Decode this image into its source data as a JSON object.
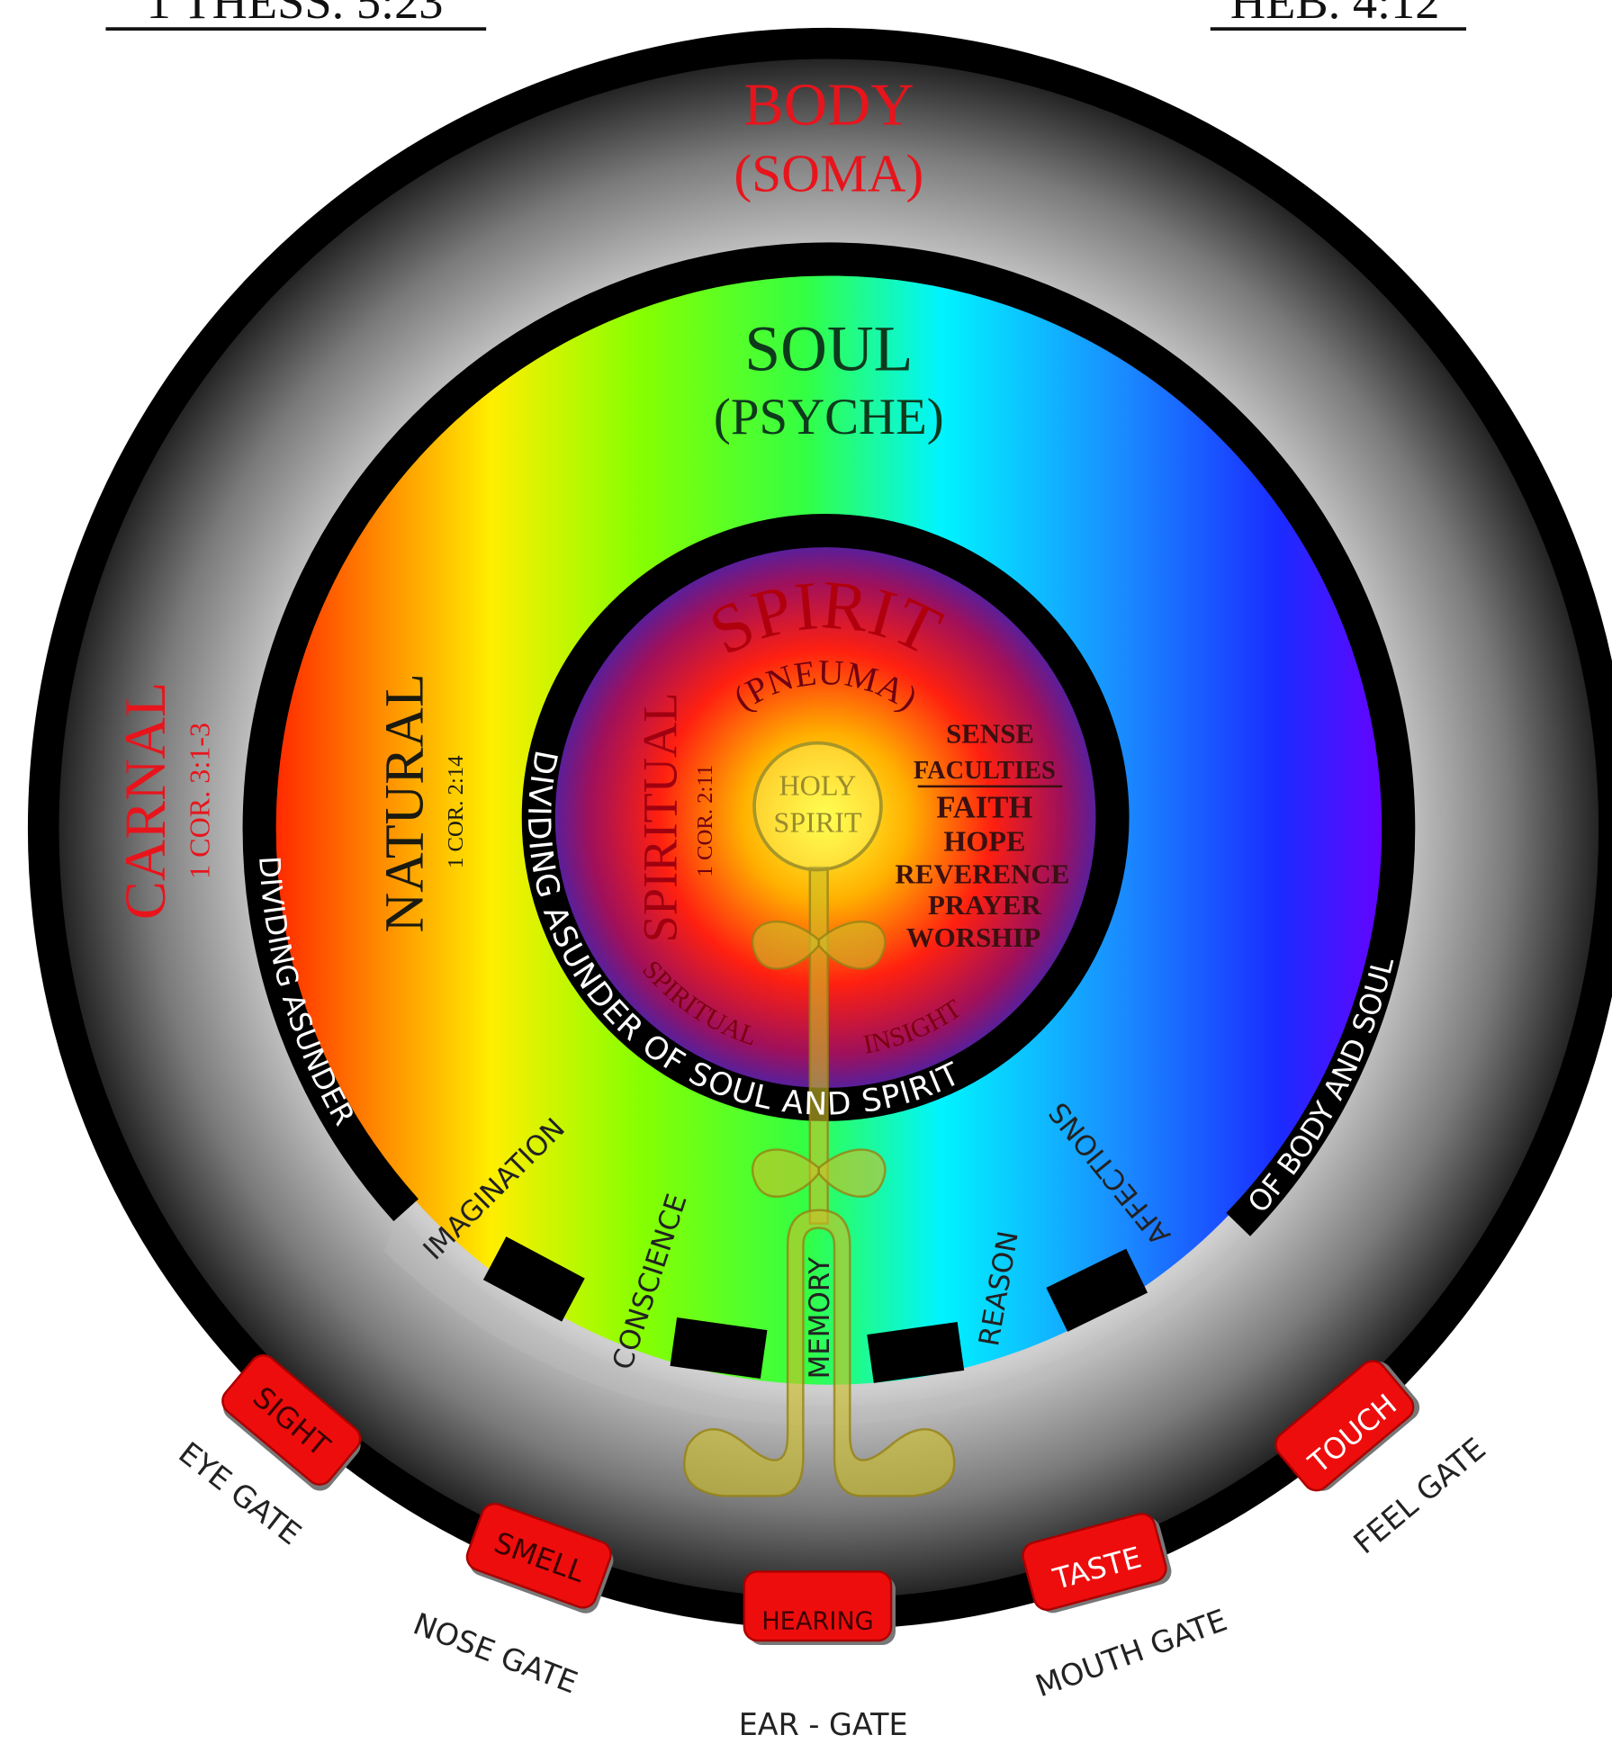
{
  "references": {
    "left": "1 THESS. 5:23",
    "right": "HEB. 4:12"
  },
  "body": {
    "title": "BODY",
    "subtitle": "(SOMA)",
    "label": "CARNAL",
    "reference": "1 COR. 3:1-3"
  },
  "soul": {
    "title": "SOUL",
    "subtitle": "(PSYCHE)",
    "label": "NATURAL",
    "reference": "1 COR. 2:14"
  },
  "spirit": {
    "title": "SPIRIT",
    "subtitle": "(PNEUMA)",
    "label": "SPIRITUAL",
    "reference": "1 COR. 2:11",
    "insight": [
      "SPIRITUAL",
      "INSIGHT"
    ],
    "faculties_heading": [
      "SENSE",
      "FACULTIES"
    ],
    "faculties": [
      "FAITH",
      "HOPE",
      "REVERENCE",
      "PRAYER",
      "WORSHIP"
    ]
  },
  "holy_spirit": [
    "HOLY",
    "SPIRIT"
  ],
  "dividers": {
    "soul_spirit": "DIVIDING ASUNDER OF SOUL AND SPIRIT",
    "body_soul": [
      "DIVIDING ASUNDER",
      "OF BODY AND SOUL"
    ]
  },
  "soul_faculties": [
    "IMAGINATION",
    "CONSCIENCE",
    "MEMORY",
    "REASON",
    "AFFECTIONS"
  ],
  "senses": [
    {
      "sense": "SIGHT",
      "gate": "EYE GATE"
    },
    {
      "sense": "SMELL",
      "gate": "NOSE GATE"
    },
    {
      "sense": "HEARING",
      "gate": "EAR - GATE"
    },
    {
      "sense": "TASTE",
      "gate": "MOUTH GATE"
    },
    {
      "sense": "TOUCH",
      "gate": "FEEL GATE"
    }
  ]
}
